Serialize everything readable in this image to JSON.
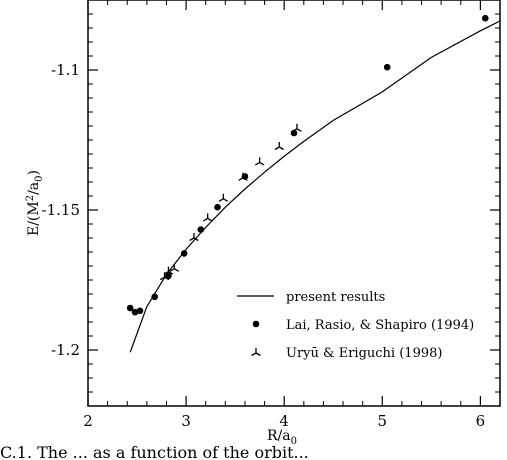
{
  "chart_data": {
    "type": "scatter",
    "xlabel": "R/a",
    "xlabel_sub": "0",
    "ylabel_prefix": "E/(M",
    "ylabel_sup": "2",
    "ylabel_mid": "/a",
    "ylabel_sub": "0",
    "ylabel_suffix": ")",
    "xlim": [
      2.0,
      6.2
    ],
    "ylim": [
      -1.22,
      -1.075
    ],
    "x_ticks": [
      2,
      3,
      4,
      5,
      6
    ],
    "x_tick_labels": [
      "2",
      "3",
      "4",
      "5",
      "6"
    ],
    "y_ticks": [
      -1.1,
      -1.15,
      -1.2
    ],
    "y_tick_labels": [
      "-1.1",
      "-1.15",
      "-1.2"
    ],
    "grid": false,
    "legend_position": "bottom-right",
    "series": [
      {
        "name": "present results",
        "kind": "line",
        "x": [
          2.43,
          2.6,
          2.8,
          3.0,
          3.2,
          3.4,
          3.6,
          3.8,
          4.0,
          4.2,
          4.5,
          5.0,
          5.5,
          6.0,
          6.2
        ],
        "y": [
          -1.2008,
          -1.1845,
          -1.173,
          -1.164,
          -1.1562,
          -1.149,
          -1.1425,
          -1.1365,
          -1.1308,
          -1.1255,
          -1.118,
          -1.1078,
          -1.0955,
          -1.086,
          -1.0825
        ]
      },
      {
        "name": "Lai, Rasio, & Shapiro (1994)",
        "kind": "points",
        "marker": "filled-circle",
        "x": [
          2.43,
          2.48,
          2.53,
          2.68,
          2.82,
          2.98,
          3.15,
          3.32,
          3.6,
          4.1,
          5.05,
          6.05
        ],
        "y": [
          -1.185,
          -1.1865,
          -1.186,
          -1.181,
          -1.1735,
          -1.1655,
          -1.157,
          -1.149,
          -1.138,
          -1.1225,
          -1.099,
          -1.0815
        ]
      },
      {
        "name": "Uryū & Eriguchi (1998)",
        "kind": "points",
        "marker": "tri-star",
        "x": [
          2.78,
          2.82,
          2.88,
          3.08,
          3.22,
          3.38,
          3.58,
          3.75,
          3.95,
          4.13
        ],
        "y": [
          -1.174,
          -1.172,
          -1.171,
          -1.16,
          -1.153,
          -1.146,
          -1.1385,
          -1.133,
          -1.1275,
          -1.121
        ]
      }
    ],
    "legend": [
      {
        "marker": "line",
        "label": "present results"
      },
      {
        "marker": "filled-circle",
        "label": "Lai, Rasio, & Shapiro (1994)"
      },
      {
        "marker": "tri-star",
        "label": "Uryū & Eriguchi (1998)"
      }
    ]
  },
  "caption_fragment": "C.1. The ... as a function of the orbit..."
}
